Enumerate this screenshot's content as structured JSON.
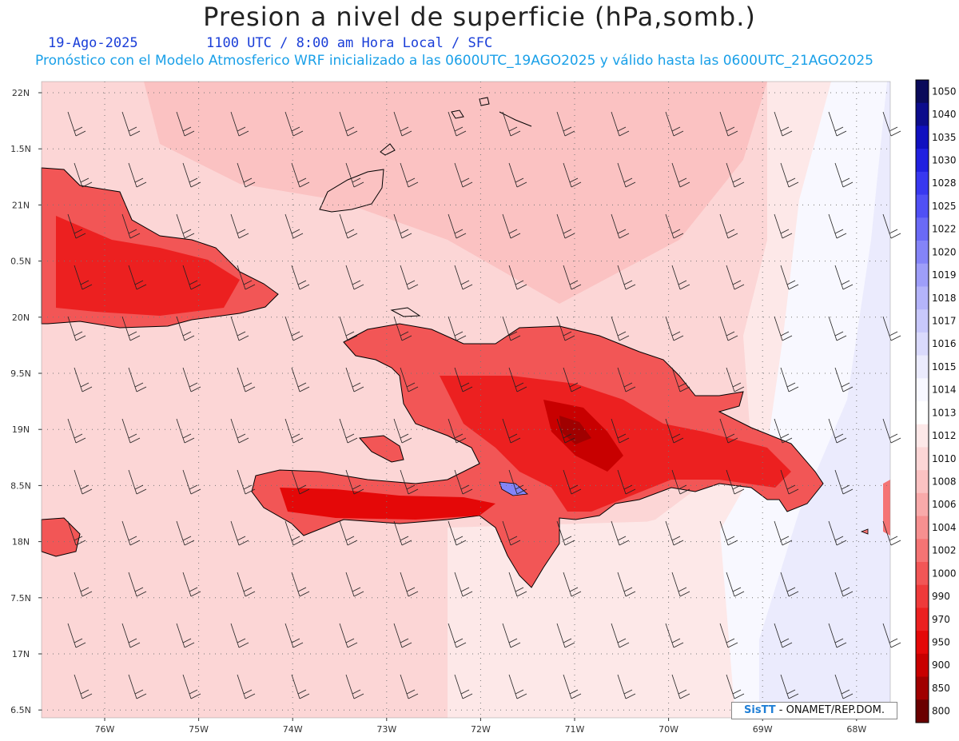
{
  "header": {
    "title": "Presion a nivel de superficie (hPa,somb.)",
    "date": "19-Ago-2025",
    "time_info": "1100 UTC / 8:00 am Hora Local / SFC",
    "model_info": "Pronóstico con el Modelo Atmosferico WRF inicializado a las 0600UTC_19AGO2025 y válido hasta las  0600UTC_21AGO2025"
  },
  "axes": {
    "lat_labels": [
      "22N",
      "1.5N",
      "21N",
      "0.5N",
      "20N",
      "9.5N",
      "19N",
      "8.5N",
      "18N",
      "7.5N",
      "17N",
      "6.5N"
    ],
    "lon_labels": [
      "76W",
      "75W",
      "74W",
      "73W",
      "72W",
      "71W",
      "70W",
      "69W",
      "68W"
    ]
  },
  "colorbar": {
    "labels": [
      "1050",
      "1040",
      "1035",
      "1030",
      "1028",
      "1025",
      "1022",
      "1020",
      "1019",
      "1018",
      "1017",
      "1016",
      "1015",
      "1014",
      "1013",
      "1012",
      "1010",
      "1008",
      "1006",
      "1004",
      "1002",
      "1000",
      "990",
      "970",
      "950",
      "900",
      "850",
      "800"
    ],
    "colors": [
      "#0a0a5a",
      "#0c0c8c",
      "#1010c0",
      "#2020e0",
      "#3838f0",
      "#5050f5",
      "#6a6af6",
      "#8484f8",
      "#9e9ef9",
      "#b4b4fa",
      "#c8c8fb",
      "#dadafc",
      "#ebebfd",
      "#f8f8ff",
      "#ffffff",
      "#fde8e8",
      "#fcd6d6",
      "#fbc2c2",
      "#f9aaaa",
      "#f79090",
      "#f57474",
      "#f25656",
      "#ef3a3a",
      "#ec2020",
      "#e40808",
      "#c80000",
      "#a00000",
      "#6a0000"
    ]
  },
  "credit": {
    "logo": "SisTT",
    "text": " - ONAMET/REP.DOM."
  }
}
